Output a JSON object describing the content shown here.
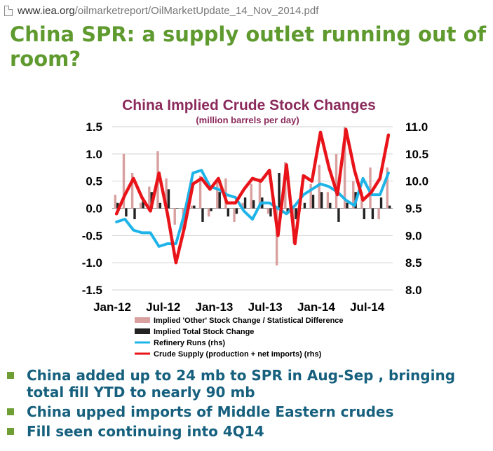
{
  "browser": {
    "url_host": "www.iea.org",
    "url_path": "/oilmarketreport/OilMarketUpdate_14_Nov_2014.pdf"
  },
  "slide": {
    "title": "China SPR: a supply outlet running out of room?",
    "bullets": [
      "China added up to 24 mb to SPR in Aug-Sep , bringing total fill YTD to nearly 90 mb",
      "China upped imports of Middle Eastern crudes",
      "Fill seen continuing into 4Q14"
    ]
  },
  "colors": {
    "title": "#5f9a2f",
    "bullet_text": "#16607e",
    "bullet_marker": "#6f9e35",
    "chart_title": "#8b2a5b",
    "other_stock": "#d9a0a0",
    "total_stock": "#222222",
    "refinery_runs": "#1fb4e8",
    "crude_supply": "#e8141a"
  },
  "chart_data": {
    "type": "bar",
    "title": "China Implied Crude Stock Changes",
    "subtitle": "(million barrels per day)",
    "x_tick_labels": [
      "Jan-12",
      "Jul-12",
      "Jan-13",
      "Jul-13",
      "Jan-14",
      "Jul-14"
    ],
    "y_left": {
      "ticks": [
        "1.5",
        "1.0",
        "0.5",
        "0.0",
        "-0.5",
        "-1.0",
        "-1.5"
      ],
      "ylim": [
        -1.5,
        1.5
      ]
    },
    "y_right": {
      "ticks": [
        "11.0",
        "10.5",
        "10.0",
        "9.5",
        "9.0",
        "8.5",
        "8.0"
      ],
      "ylim": [
        8.0,
        11.0
      ]
    },
    "grid": true,
    "legend_position": "bottom",
    "months": [
      "Jan-12",
      "Feb-12",
      "Mar-12",
      "Apr-12",
      "May-12",
      "Jun-12",
      "Jul-12",
      "Aug-12",
      "Sep-12",
      "Oct-12",
      "Nov-12",
      "Dec-12",
      "Jan-13",
      "Feb-13",
      "Mar-13",
      "Apr-13",
      "May-13",
      "Jun-13",
      "Jul-13",
      "Aug-13",
      "Sep-13",
      "Oct-13",
      "Nov-13",
      "Dec-13",
      "Jan-14",
      "Feb-14",
      "Mar-14",
      "Apr-14",
      "May-14",
      "Jun-14",
      "Jul-14",
      "Aug-14",
      "Sep-14"
    ],
    "series": [
      {
        "name": "Implied 'Other' Stock Change / Statistical Difference",
        "kind": "bar",
        "axis": "left",
        "values": [
          0.25,
          1.0,
          0.65,
          0.1,
          0.4,
          1.05,
          0.55,
          -0.3,
          -0.4,
          0.05,
          0.6,
          -0.15,
          0.55,
          0.55,
          -0.25,
          0.1,
          0.45,
          0.55,
          -0.1,
          -1.05,
          0.85,
          -0.65,
          0.0,
          0.45,
          0.8,
          0.3,
          1.0,
          1.5,
          0.5,
          0.3,
          0.75,
          -0.2,
          0.75
        ]
      },
      {
        "name": "Implied Total Stock Change",
        "kind": "bar",
        "axis": "left",
        "values": [
          0.1,
          -0.15,
          -0.2,
          0.15,
          0.3,
          0.1,
          0.35,
          0.0,
          -0.15,
          0.05,
          -0.25,
          -0.05,
          0.3,
          -0.15,
          -0.1,
          0.2,
          0.15,
          0.2,
          -0.15,
          0.65,
          -0.1,
          -0.2,
          0.1,
          0.25,
          0.3,
          0.1,
          -0.25,
          0.1,
          0.3,
          -0.2,
          -0.2,
          0.2,
          0.05
        ]
      },
      {
        "name": "Refinery Runs (rhs)",
        "kind": "line",
        "axis": "right",
        "values": [
          9.25,
          9.3,
          9.1,
          9.05,
          9.05,
          8.8,
          8.85,
          8.85,
          9.4,
          10.15,
          10.2,
          9.9,
          9.85,
          9.75,
          9.7,
          9.45,
          9.3,
          9.6,
          9.6,
          9.5,
          9.4,
          9.55,
          9.75,
          9.85,
          9.95,
          9.9,
          9.8,
          9.65,
          9.55,
          10.05,
          9.75,
          9.75,
          10.15
        ]
      },
      {
        "name": "Crude Supply (production + net imports) (rhs)",
        "kind": "line",
        "axis": "right",
        "values": [
          9.4,
          9.75,
          10.05,
          9.7,
          9.45,
          10.15,
          9.4,
          8.5,
          9.15,
          9.95,
          10.05,
          9.85,
          10.05,
          9.6,
          9.6,
          9.85,
          10.05,
          10.0,
          10.2,
          9.0,
          10.3,
          8.85,
          10.1,
          10.0,
          10.9,
          10.25,
          9.75,
          10.95,
          10.2,
          9.65,
          9.8,
          10.05,
          10.85
        ]
      }
    ]
  }
}
